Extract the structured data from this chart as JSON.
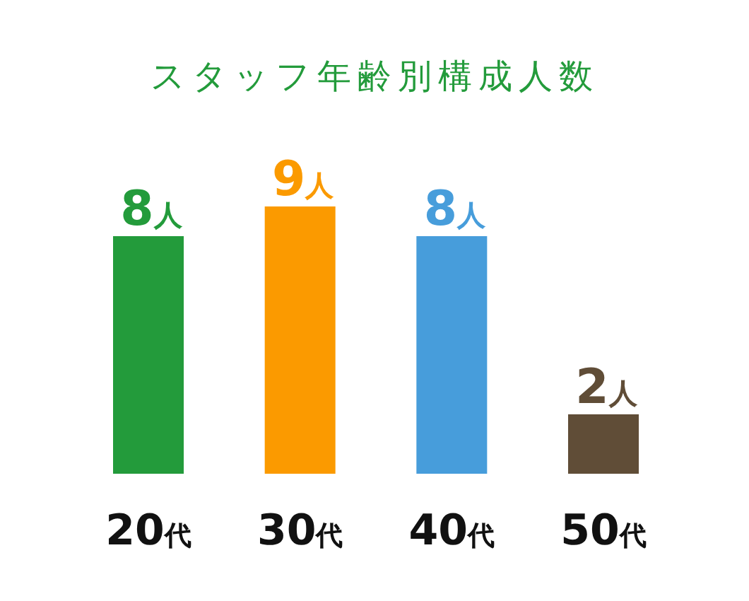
{
  "chart_data": {
    "type": "bar",
    "title": "スタッフ年齢別構成人数",
    "categories": [
      "20代",
      "30代",
      "40代",
      "50代"
    ],
    "values": [
      8,
      9,
      8,
      2
    ],
    "colors": [
      "#239b3b",
      "#fb9a00",
      "#479ddb",
      "#604d37"
    ],
    "value_labels": [
      "8人",
      "9人",
      "8人",
      "2人"
    ]
  }
}
